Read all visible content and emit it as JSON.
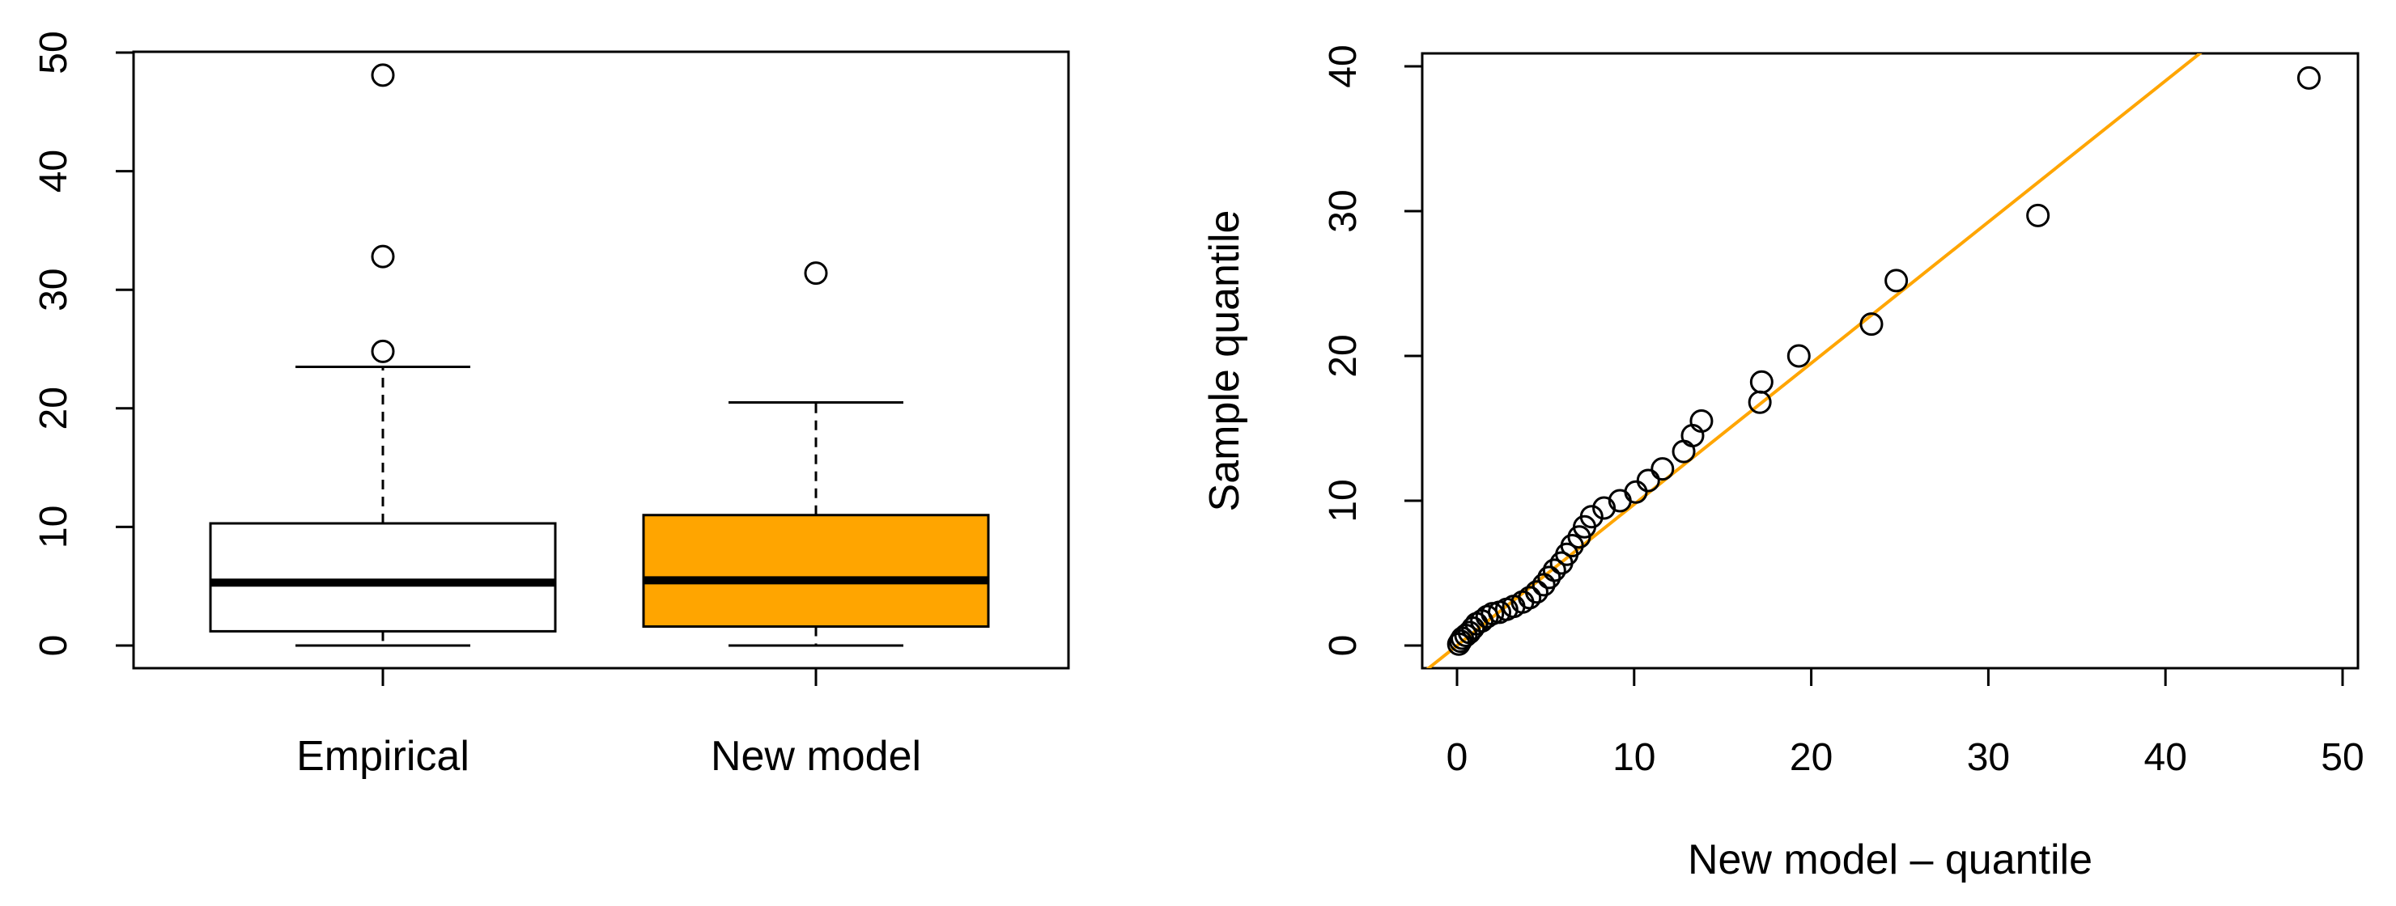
{
  "chart_data": [
    {
      "type": "box",
      "categories": [
        "Empirical",
        "New model"
      ],
      "ylim": [
        0,
        50
      ],
      "yticks": [
        "0",
        "10",
        "20",
        "30",
        "40",
        "50"
      ],
      "xlabel": "",
      "ylabel": "",
      "grid": false,
      "series": [
        {
          "category": "Empirical",
          "fill": "#ffffff",
          "min": 0.0,
          "q1": 1.2,
          "median": 5.3,
          "q3": 10.3,
          "max": 23.5,
          "outliers": [
            24.8,
            32.8,
            48.1
          ]
        },
        {
          "category": "New model",
          "fill": "#FFA500",
          "min": 0.0,
          "q1": 1.6,
          "median": 5.5,
          "q3": 11.0,
          "max": 20.5,
          "outliers": [
            31.4
          ]
        }
      ]
    },
    {
      "type": "scatter",
      "xlabel": "New model – quantile",
      "ylabel": "Sample quantile",
      "xlim": [
        0,
        50
      ],
      "ylim": [
        0,
        40
      ],
      "xticks": [
        "0",
        "10",
        "20",
        "30",
        "40",
        "50"
      ],
      "yticks": [
        "0",
        "10",
        "20",
        "30",
        "40"
      ],
      "grid": false,
      "reference_line": {
        "color": "#FFA500",
        "intercept": 0.0,
        "slope": 0.975
      },
      "points": [
        [
          0.1,
          0.1
        ],
        [
          0.2,
          0.3
        ],
        [
          0.3,
          0.5
        ],
        [
          0.5,
          0.7
        ],
        [
          0.7,
          0.9
        ],
        [
          0.9,
          1.2
        ],
        [
          1.1,
          1.5
        ],
        [
          1.4,
          1.7
        ],
        [
          1.7,
          2.0
        ],
        [
          2.0,
          2.2
        ],
        [
          2.4,
          2.3
        ],
        [
          2.8,
          2.5
        ],
        [
          3.2,
          2.7
        ],
        [
          3.7,
          3.0
        ],
        [
          4.1,
          3.3
        ],
        [
          4.5,
          3.7
        ],
        [
          4.9,
          4.2
        ],
        [
          5.2,
          4.7
        ],
        [
          5.5,
          5.2
        ],
        [
          5.9,
          5.7
        ],
        [
          6.2,
          6.3
        ],
        [
          6.5,
          6.9
        ],
        [
          6.9,
          7.5
        ],
        [
          7.2,
          8.2
        ],
        [
          7.6,
          8.9
        ],
        [
          8.3,
          9.5
        ],
        [
          9.2,
          10.0
        ],
        [
          10.1,
          10.6
        ],
        [
          10.8,
          11.4
        ],
        [
          11.6,
          12.2
        ],
        [
          12.8,
          13.4
        ],
        [
          13.3,
          14.5
        ],
        [
          13.8,
          15.5
        ],
        [
          17.1,
          16.8
        ],
        [
          17.2,
          18.2
        ],
        [
          19.3,
          20.0
        ],
        [
          23.4,
          22.2
        ],
        [
          24.8,
          25.2
        ],
        [
          32.8,
          29.7
        ],
        [
          48.1,
          39.2
        ]
      ]
    }
  ]
}
